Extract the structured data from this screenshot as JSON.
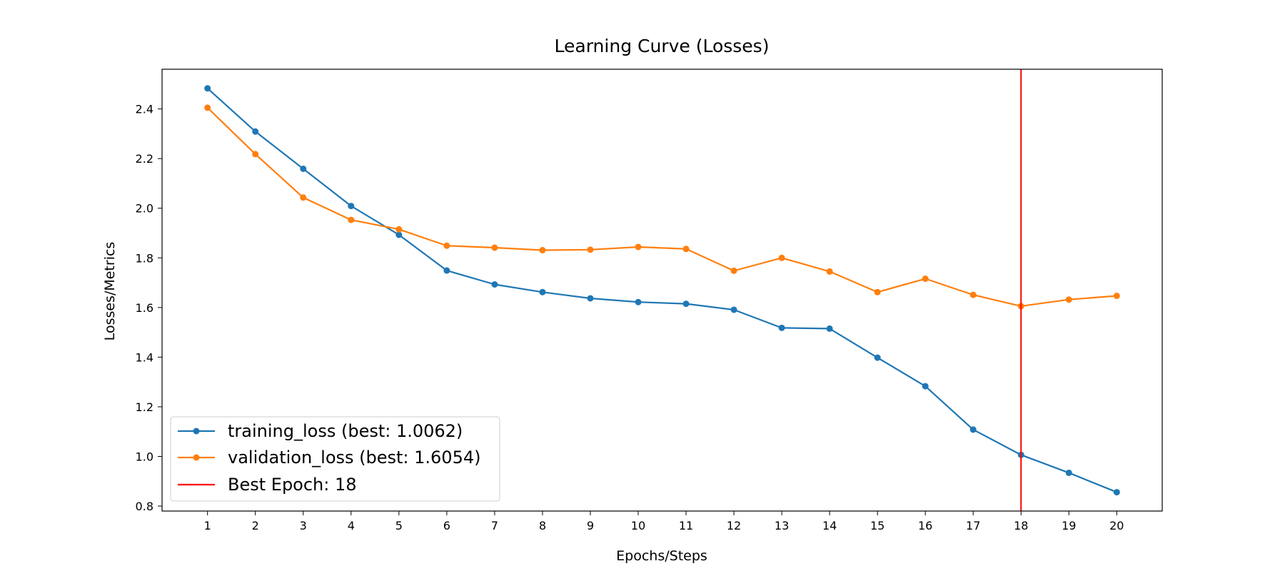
{
  "chart_data": {
    "type": "line",
    "title": "Learning Curve (Losses)",
    "xlabel": "Epochs/Steps",
    "ylabel": "Losses/Metrics",
    "x": [
      1,
      2,
      3,
      4,
      5,
      6,
      7,
      8,
      9,
      10,
      11,
      12,
      13,
      14,
      15,
      16,
      17,
      18,
      19,
      20
    ],
    "xticks": [
      "1",
      "2",
      "3",
      "4",
      "5",
      "6",
      "7",
      "8",
      "9",
      "10",
      "11",
      "12",
      "13",
      "14",
      "15",
      "16",
      "17",
      "18",
      "19",
      "20"
    ],
    "xlim": [
      0.05,
      20.95
    ],
    "yticks": [
      "0.8",
      "1.0",
      "1.2",
      "1.4",
      "1.6",
      "1.8",
      "2.0",
      "2.2",
      "2.4"
    ],
    "ylim": [
      0.78,
      2.56
    ],
    "series": [
      {
        "name": "training_loss (best: 1.0062)",
        "color": "#1f77b4",
        "marker": "circle",
        "values": [
          2.483,
          2.309,
          2.159,
          2.009,
          1.893,
          1.749,
          1.693,
          1.662,
          1.637,
          1.622,
          1.615,
          1.591,
          1.518,
          1.515,
          1.398,
          1.283,
          1.108,
          1.0062,
          0.934,
          0.856
        ]
      },
      {
        "name": "validation_loss (best: 1.6054)",
        "color": "#ff7f0e",
        "marker": "circle",
        "values": [
          2.405,
          2.218,
          2.043,
          1.953,
          1.915,
          1.849,
          1.841,
          1.831,
          1.833,
          1.844,
          1.836,
          1.748,
          1.8,
          1.745,
          1.662,
          1.716,
          1.651,
          1.6054,
          1.632,
          1.647
        ]
      }
    ],
    "vline": {
      "x": 18,
      "label": "Best Epoch: 18",
      "color": "#ff0000"
    },
    "legend": "lower-left",
    "grid": false
  }
}
